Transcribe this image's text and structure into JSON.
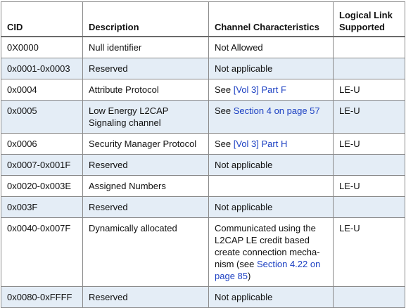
{
  "table": {
    "headers": {
      "cid": "CID",
      "description": "Description",
      "channel_characteristics": "Channel Characteristics",
      "logical_link": "Logical Link Supported"
    },
    "rows": [
      {
        "cid": "0X0000",
        "description": "Null identifier",
        "channel_text": "Not Allowed",
        "channel_link": "",
        "channel_suffix": "",
        "logical_link": ""
      },
      {
        "cid": "0x0001-0x0003",
        "description": "Reserved",
        "channel_text": "Not applicable",
        "channel_link": "",
        "channel_suffix": "",
        "logical_link": ""
      },
      {
        "cid": "0x0004",
        "description": "Attribute Protocol",
        "channel_text": "See ",
        "channel_link": "[Vol 3] Part F",
        "channel_suffix": "",
        "logical_link": "LE-U"
      },
      {
        "cid": "0x0005",
        "description": "Low Energy L2CAP Signaling channel",
        "channel_text": "See ",
        "channel_link": "Section 4 on page 57",
        "channel_suffix": "",
        "logical_link": "LE-U"
      },
      {
        "cid": "0x0006",
        "description": "Security Manager Protocol",
        "channel_text": "See ",
        "channel_link": "[Vol 3] Part H",
        "channel_suffix": "",
        "logical_link": "LE-U"
      },
      {
        "cid": "0x0007-0x001F",
        "description": "Reserved",
        "channel_text": "Not applicable",
        "channel_link": "",
        "channel_suffix": "",
        "logical_link": ""
      },
      {
        "cid": "0x0020-0x003E",
        "description": "Assigned Numbers",
        "channel_text": "",
        "channel_link": "",
        "channel_suffix": "",
        "logical_link": "LE-U"
      },
      {
        "cid": "0x003F",
        "description": "Reserved",
        "channel_text": "Not applicable",
        "channel_link": "",
        "channel_suffix": "",
        "logical_link": ""
      },
      {
        "cid": "0x0040-0x007F",
        "description": "Dynamically allocated",
        "channel_text": "Communicated using the L2CAP LE credit based create connection mecha-nism (see ",
        "channel_link": "Section 4.22 on page 85",
        "channel_suffix": ")",
        "logical_link": "LE-U"
      },
      {
        "cid": "0x0080-0xFFFF",
        "description": "Reserved",
        "channel_text": "Not applicable",
        "channel_link": "",
        "channel_suffix": "",
        "logical_link": ""
      }
    ]
  }
}
